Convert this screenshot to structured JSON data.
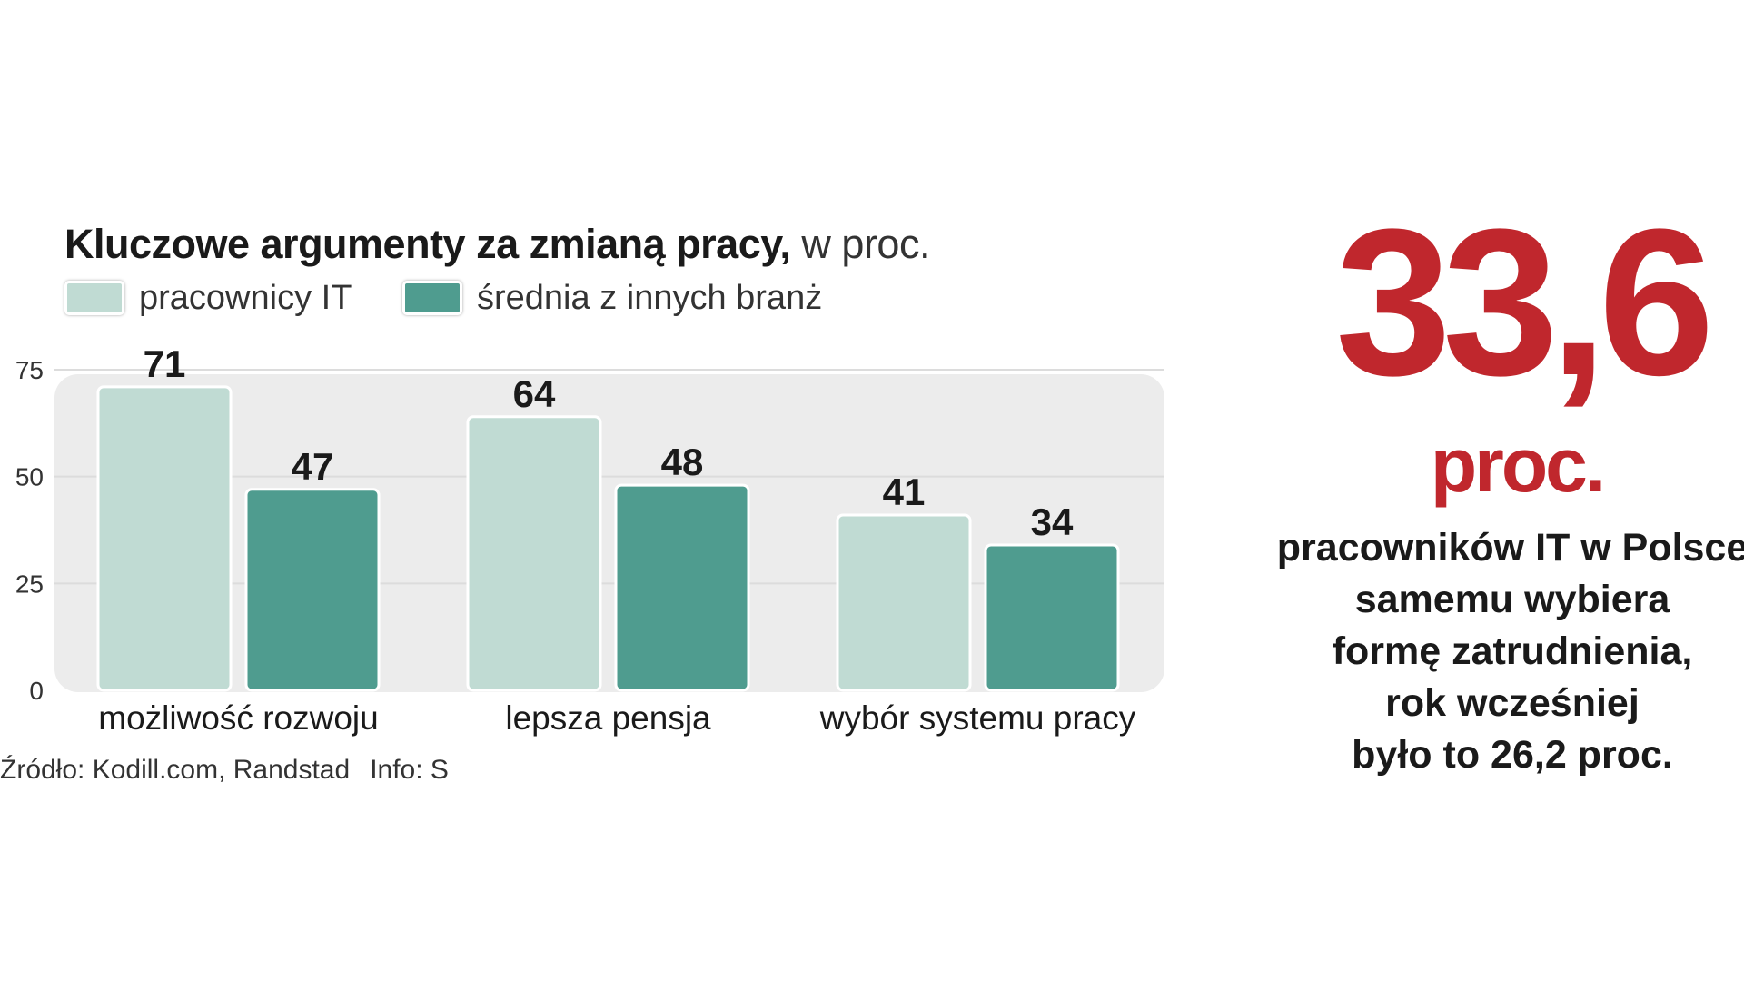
{
  "title": {
    "bold": "Kluczowe argumenty za zmianą pracy,",
    "light": " w proc."
  },
  "legend": [
    {
      "label": "pracownicy IT",
      "color": "#c0dbd3"
    },
    {
      "label": "średnia z innych branż",
      "color": "#4f9c8f"
    }
  ],
  "chart_data": {
    "type": "bar",
    "categories": [
      "możliwość rozwoju",
      "lepsza pensja",
      "wybór systemu pracy"
    ],
    "series": [
      {
        "name": "pracownicy IT",
        "values": [
          71,
          64,
          41
        ],
        "color": "#c0dbd3"
      },
      {
        "name": "średnia z innych branż",
        "values": [
          47,
          48,
          34
        ],
        "color": "#4f9c8f"
      }
    ],
    "yticks": [
      0,
      25,
      50,
      75
    ],
    "ylim": [
      0,
      75
    ],
    "grid": true,
    "legend_position": "top-left"
  },
  "source": {
    "text": "Źródło: Kodill.com, Randstad",
    "info": "Info: S"
  },
  "highlight": {
    "number": "33,6",
    "unit": "proc.",
    "color": "#c0272d",
    "description": [
      "pracowników IT w Polsce",
      "samemu wybiera",
      "formę zatrudnienia,",
      "rok wcześniej",
      "było to 26,2 proc."
    ]
  }
}
